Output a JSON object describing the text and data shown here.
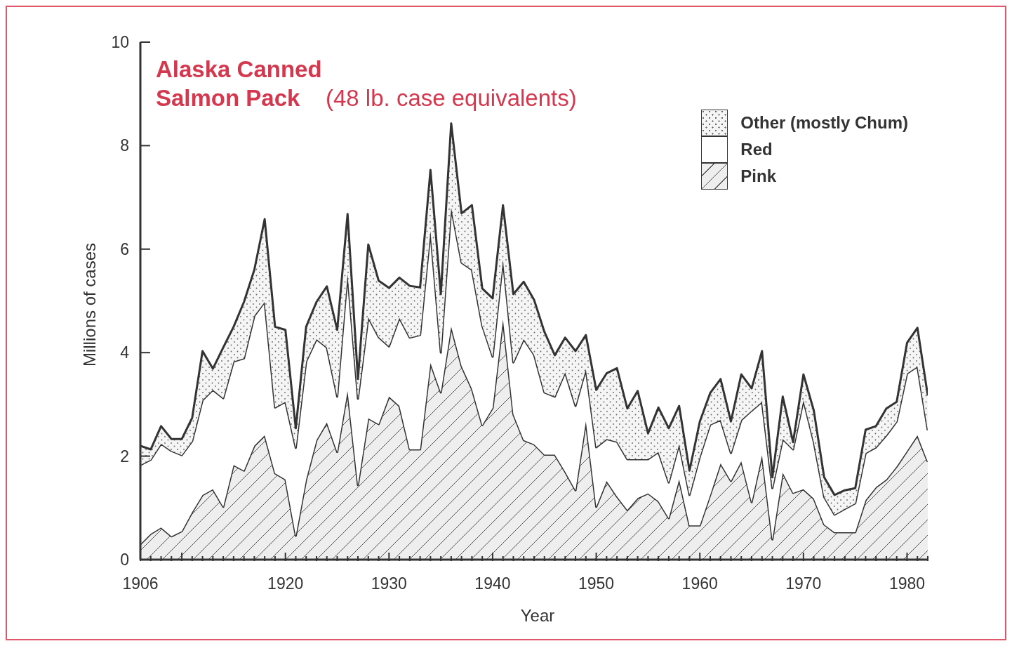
{
  "chart_data": {
    "type": "area",
    "title": "Alaska Canned Salmon Pack",
    "subtitle": "(48 lb. case equivalents)",
    "xlabel": "Year",
    "ylabel": "Millions of cases",
    "stacked": true,
    "legend": "top right",
    "x": [
      1906,
      1907,
      1908,
      1909,
      1910,
      1911,
      1912,
      1913,
      1914,
      1915,
      1916,
      1917,
      1918,
      1919,
      1920,
      1921,
      1922,
      1923,
      1924,
      1925,
      1926,
      1927,
      1928,
      1929,
      1930,
      1931,
      1932,
      1933,
      1934,
      1935,
      1936,
      1937,
      1938,
      1939,
      1940,
      1941,
      1942,
      1943,
      1944,
      1945,
      1946,
      1947,
      1948,
      1949,
      1950,
      1951,
      1952,
      1953,
      1954,
      1955,
      1956,
      1957,
      1958,
      1959,
      1960,
      1961,
      1962,
      1963,
      1964,
      1965,
      1966,
      1967,
      1968,
      1969,
      1970,
      1971,
      1972,
      1973,
      1974,
      1975,
      1976,
      1977,
      1978,
      1979,
      1980,
      1981,
      1982
    ],
    "series": [
      {
        "name": "Pink",
        "color": "#eeeeee",
        "values": [
          0.3,
          0.5,
          0.62,
          0.45,
          0.55,
          0.92,
          1.25,
          1.36,
          1.02,
          1.83,
          1.72,
          2.2,
          2.4,
          1.67,
          1.55,
          0.46,
          1.55,
          2.31,
          2.65,
          2.08,
          3.26,
          1.44,
          2.73,
          2.62,
          3.15,
          2.97,
          2.13,
          2.13,
          3.8,
          3.23,
          4.5,
          3.74,
          3.3,
          2.6,
          2.93,
          4.64,
          2.81,
          2.31,
          2.23,
          2.03,
          2.03,
          1.7,
          1.34,
          2.67,
          1.02,
          1.52,
          1.22,
          0.96,
          1.19,
          1.28,
          1.13,
          0.8,
          1.55,
          0.66,
          0.66,
          1.25,
          1.86,
          1.52,
          1.9,
          1.11,
          2.02,
          0.39,
          1.68,
          1.29,
          1.36,
          1.18,
          0.68,
          0.53,
          0.53,
          0.53,
          1.15,
          1.4,
          1.55,
          1.8,
          2.1,
          2.4,
          1.89
        ]
      },
      {
        "name": "Red",
        "color": "#ffffff",
        "values": [
          1.53,
          1.43,
          1.62,
          1.65,
          1.47,
          1.37,
          1.83,
          1.92,
          2.1,
          2.0,
          2.17,
          2.51,
          2.58,
          1.27,
          1.5,
          1.7,
          2.28,
          1.95,
          1.45,
          1.07,
          2.26,
          1.67,
          1.95,
          1.68,
          0.97,
          1.7,
          2.16,
          2.21,
          2.55,
          0.77,
          2.3,
          2.0,
          2.3,
          1.92,
          0.99,
          1.15,
          1.0,
          1.95,
          1.73,
          1.2,
          1.12,
          1.92,
          1.63,
          1.01,
          1.15,
          0.81,
          1.06,
          0.98,
          0.75,
          0.66,
          0.95,
          0.69,
          0.68,
          0.59,
          1.33,
          1.36,
          0.84,
          0.54,
          0.8,
          1.77,
          1.03,
          0.99,
          0.65,
          0.84,
          1.72,
          1.09,
          0.53,
          0.34,
          0.45,
          0.56,
          0.91,
          0.77,
          0.85,
          0.87,
          1.5,
          1.33,
          0.61
        ]
      },
      {
        "name": "Other (mostly Chum)",
        "color": "#f5f5f5",
        "values": [
          0.37,
          0.2,
          0.34,
          0.23,
          0.31,
          0.45,
          0.95,
          0.41,
          0.98,
          0.67,
          1.09,
          0.89,
          1.6,
          1.56,
          1.39,
          0.38,
          0.67,
          0.72,
          1.18,
          1.29,
          1.16,
          0.38,
          1.41,
          1.09,
          1.13,
          0.78,
          1.0,
          0.92,
          1.18,
          1.13,
          1.63,
          0.95,
          1.25,
          0.72,
          1.13,
          1.06,
          1.32,
          1.11,
          1.06,
          1.17,
          0.8,
          0.67,
          1.06,
          0.66,
          1.11,
          1.27,
          1.42,
          0.98,
          1.32,
          0.5,
          0.86,
          1.05,
          0.74,
          0.47,
          0.68,
          0.61,
          0.79,
          0.61,
          0.88,
          0.43,
          0.98,
          0.21,
          0.82,
          0.14,
          0.5,
          0.61,
          0.38,
          0.38,
          0.36,
          0.29,
          0.45,
          0.41,
          0.52,
          0.38,
          0.59,
          0.75,
          0.67
        ]
      }
    ],
    "xlim": [
      1906,
      1982
    ],
    "xticks": [
      1906,
      {
        "value": 1907,
        "label": null
      },
      {
        "value": 1908,
        "label": null
      },
      {
        "value": 1909,
        "label": null
      },
      {
        "value": 1910,
        "label": null
      },
      {
        "value": 1911,
        "label": null
      },
      {
        "value": 1912,
        "label": null
      },
      {
        "value": 1913,
        "label": null
      },
      {
        "value": 1914,
        "label": null
      },
      {
        "value": 1915,
        "label": null
      },
      {
        "value": 1916,
        "label": null
      },
      {
        "value": 1917,
        "label": null
      },
      {
        "value": 1918,
        "label": null
      },
      {
        "value": 1919,
        "label": null
      },
      1920,
      {
        "value": 1921,
        "label": null
      },
      {
        "value": 1922,
        "label": null
      },
      {
        "value": 1923,
        "label": null
      },
      {
        "value": 1924,
        "label": null
      },
      {
        "value": 1925,
        "label": null
      },
      {
        "value": 1926,
        "label": null
      },
      {
        "value": 1927,
        "label": null
      },
      {
        "value": 1928,
        "label": null
      },
      {
        "value": 1929,
        "label": null
      },
      1930,
      {
        "value": 1931,
        "label": null
      },
      {
        "value": 1932,
        "label": null
      },
      {
        "value": 1933,
        "label": null
      },
      {
        "value": 1934,
        "label": null
      },
      {
        "value": 1935,
        "label": null
      },
      {
        "value": 1936,
        "label": null
      },
      {
        "value": 1937,
        "label": null
      },
      {
        "value": 1938,
        "label": null
      },
      {
        "value": 1939,
        "label": null
      },
      1940,
      {
        "value": 1941,
        "label": null
      },
      {
        "value": 1942,
        "label": null
      },
      {
        "value": 1943,
        "label": null
      },
      {
        "value": 1944,
        "label": null
      },
      {
        "value": 1945,
        "label": null
      },
      {
        "value": 1946,
        "label": null
      },
      {
        "value": 1947,
        "label": null
      },
      {
        "value": 1948,
        "label": null
      },
      {
        "value": 1949,
        "label": null
      },
      1950,
      {
        "value": 1951,
        "label": null
      },
      {
        "value": 1952,
        "label": null
      },
      {
        "value": 1953,
        "label": null
      },
      {
        "value": 1954,
        "label": null
      },
      {
        "value": 1955,
        "label": null
      },
      {
        "value": 1956,
        "label": null
      },
      {
        "value": 1957,
        "label": null
      },
      {
        "value": 1958,
        "label": null
      },
      {
        "value": 1959,
        "label": null
      },
      1960,
      {
        "value": 1961,
        "label": null
      },
      {
        "value": 1962,
        "label": null
      },
      {
        "value": 1963,
        "label": null
      },
      {
        "value": 1964,
        "label": null
      },
      {
        "value": 1965,
        "label": null
      },
      {
        "value": 1966,
        "label": null
      },
      {
        "value": 1967,
        "label": null
      },
      {
        "value": 1968,
        "label": null
      },
      {
        "value": 1969,
        "label": null
      },
      1970,
      {
        "value": 1971,
        "label": null
      },
      {
        "value": 1972,
        "label": null
      },
      {
        "value": 1973,
        "label": null
      },
      {
        "value": 1974,
        "label": null
      },
      {
        "value": 1975,
        "label": null
      },
      {
        "value": 1976,
        "label": null
      },
      {
        "value": 1977,
        "label": null
      },
      {
        "value": 1978,
        "label": null
      },
      {
        "value": 1979,
        "label": null
      },
      1980,
      {
        "value": 1981,
        "label": null
      },
      {
        "value": 1982,
        "label": null
      }
    ],
    "ylim": [
      0,
      10
    ],
    "yticks": [
      0,
      2,
      4,
      6,
      8,
      10
    ]
  }
}
